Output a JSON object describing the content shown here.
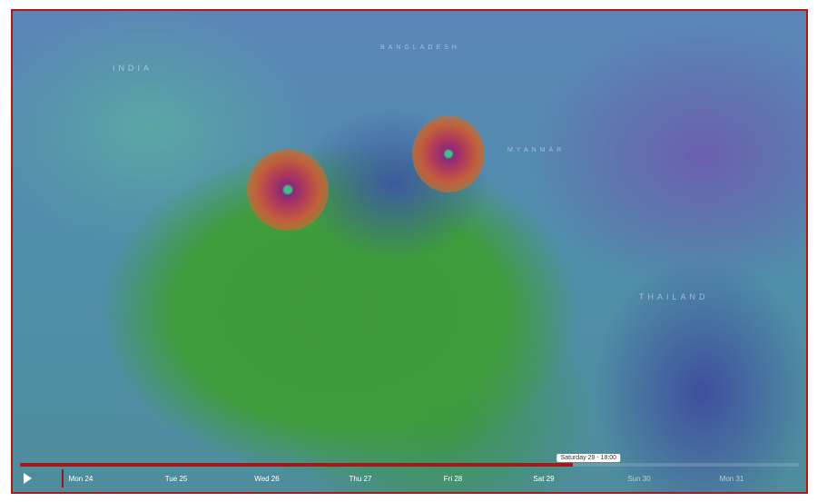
{
  "map": {
    "labels": {
      "india": "INDIA",
      "bangladesh": "BANGLADESH",
      "myanmar": "MYANMAR",
      "thailand": "THAILAND"
    }
  },
  "timeline": {
    "play_icon": "play-icon",
    "progress_percent": 71,
    "tooltip": "Saturday 29 - 18:00",
    "days": [
      "Mon 24",
      "Tue 25",
      "Wed 26",
      "Thu 27",
      "Fri 28",
      "Sat 29",
      "Sun 30",
      "Mon 31"
    ],
    "progress_color": "#a31818"
  }
}
